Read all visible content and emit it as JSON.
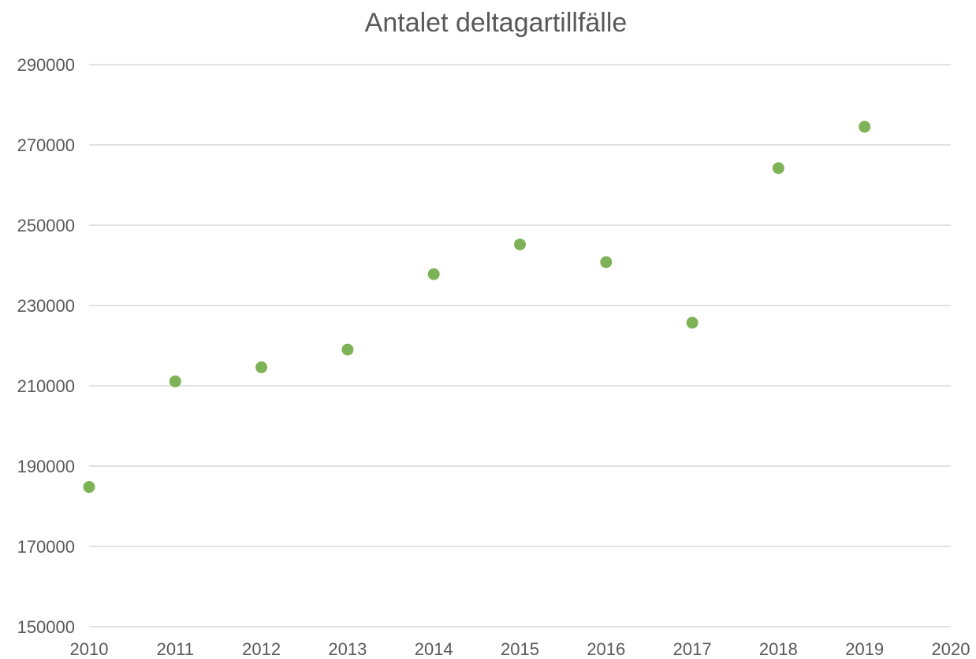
{
  "chart_data": {
    "type": "scatter",
    "title": "Antalet deltagartillfälle",
    "xlabel": "",
    "ylabel": "",
    "xlim": [
      2010,
      2020
    ],
    "ylim": [
      150000,
      290000
    ],
    "x_ticks": [
      "2010",
      "2011",
      "2012",
      "2013",
      "2014",
      "2015",
      "2016",
      "2017",
      "2018",
      "2019",
      "2020"
    ],
    "y_ticks": [
      "150000",
      "170000",
      "190000",
      "210000",
      "230000",
      "250000",
      "270000",
      "290000"
    ],
    "grid": true,
    "legend": "none",
    "marker_color": "#7db356",
    "series": [
      {
        "x": [
          2010,
          2011,
          2012,
          2013,
          2014,
          2015,
          2016,
          2017,
          2018,
          2019
        ],
        "y": [
          184800,
          211100,
          214600,
          219000,
          237800,
          245200,
          240800,
          225700,
          264200,
          274500
        ]
      }
    ]
  }
}
